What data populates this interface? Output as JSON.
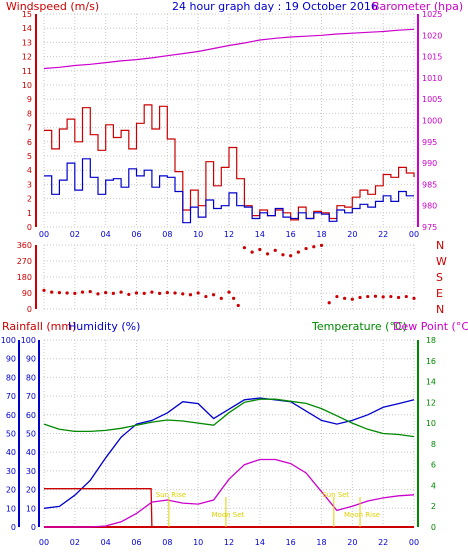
{
  "chart_data": [
    {
      "type": "line",
      "title": "24 hour graph day : 19 October 2016",
      "ylabel_left": "Windspeed (m/s)",
      "ylabel_right": "Barometer (hpa)",
      "xlim": [
        0,
        24
      ],
      "x_ticks": [
        "00",
        "02",
        "04",
        "06",
        "08",
        "10",
        "12",
        "14",
        "16",
        "18",
        "20",
        "22",
        "00"
      ],
      "ylim_left": [
        0,
        15
      ],
      "y_ticks_left": [
        "0",
        "1",
        "2",
        "3",
        "4",
        "5",
        "6",
        "7",
        "8",
        "9",
        "10",
        "11",
        "12",
        "13",
        "14",
        "15"
      ],
      "ylim_right": [
        975,
        1025
      ],
      "y_ticks_right": [
        "975",
        "980",
        "985",
        "990",
        "995",
        "1000",
        "1005",
        "1010",
        "1015",
        "1020",
        "1025"
      ],
      "grid": true,
      "series": [
        {
          "name": "Barometer (hpa)",
          "axis": "right",
          "color": "#cc00cc",
          "x": [
            0,
            1,
            2,
            3,
            4,
            5,
            6,
            7,
            8,
            9,
            10,
            11,
            12,
            13,
            14,
            15,
            16,
            17,
            18,
            19,
            20,
            21,
            22,
            23,
            24
          ],
          "y": [
            1012.2,
            1012.5,
            1012.9,
            1013.2,
            1013.6,
            1014.0,
            1014.3,
            1014.7,
            1015.2,
            1015.7,
            1016.2,
            1016.9,
            1017.6,
            1018.2,
            1018.9,
            1019.3,
            1019.6,
            1019.8,
            1020.0,
            1020.3,
            1020.5,
            1020.7,
            1020.9,
            1021.2,
            1021.4
          ]
        },
        {
          "name": "Windspeed (m/s)",
          "axis": "left",
          "color": "#cc0000",
          "x": [
            0,
            0.5,
            1,
            1.5,
            2,
            2.5,
            3,
            3.5,
            4,
            4.5,
            5,
            5.5,
            6,
            6.5,
            7,
            7.5,
            8,
            8.5,
            9,
            9.5,
            10,
            10.5,
            11,
            11.5,
            12,
            12.5,
            13,
            13.5,
            14,
            14.5,
            15,
            15.5,
            16,
            16.5,
            17,
            17.5,
            18,
            18.5,
            19,
            19.5,
            20,
            20.5,
            21,
            21.5,
            22,
            22.5,
            23,
            23.5,
            24
          ],
          "y": [
            6.8,
            5.5,
            6.9,
            7.6,
            6.0,
            8.4,
            6.5,
            5.4,
            7.2,
            6.3,
            6.8,
            5.5,
            7.3,
            8.6,
            6.9,
            8.5,
            6.2,
            3.9,
            1.2,
            2.6,
            1.5,
            4.6,
            2.9,
            4.2,
            5.6,
            3.4,
            1.5,
            0.8,
            1.2,
            0.8,
            1.2,
            1.0,
            0.5,
            1.4,
            0.6,
            1.1,
            1.0,
            0.6,
            1.5,
            1.4,
            2.1,
            2.6,
            2.3,
            2.9,
            3.7,
            3.5,
            4.2,
            3.8,
            3.5
          ]
        },
        {
          "name": "Windspeed (m/s) average",
          "axis": "left",
          "color": "#0000cc",
          "x": [
            0,
            0.5,
            1,
            1.5,
            2,
            2.5,
            3,
            3.5,
            4,
            4.5,
            5,
            5.5,
            6,
            6.5,
            7,
            7.5,
            8,
            8.5,
            9,
            9.5,
            10,
            10.5,
            11,
            11.5,
            12,
            12.5,
            13,
            13.5,
            14,
            14.5,
            15,
            15.5,
            16,
            16.5,
            17,
            17.5,
            18,
            18.5,
            19,
            19.5,
            20,
            20.5,
            21,
            21.5,
            22,
            22.5,
            23,
            23.5,
            24
          ],
          "y": [
            3.6,
            2.3,
            3.3,
            4.5,
            2.6,
            4.8,
            3.5,
            2.3,
            3.3,
            3.4,
            2.8,
            4.1,
            3.6,
            4.0,
            2.8,
            3.6,
            3.5,
            2.5,
            0.3,
            1.4,
            0.7,
            1.9,
            1.3,
            1.5,
            2.4,
            1.5,
            1.4,
            0.6,
            1.0,
            0.8,
            1.3,
            0.7,
            0.6,
            1.0,
            0.6,
            1.0,
            0.9,
            0.4,
            1.2,
            1.0,
            1.3,
            1.6,
            1.4,
            1.8,
            2.2,
            1.8,
            2.5,
            2.2,
            2.2
          ]
        }
      ]
    },
    {
      "type": "scatter",
      "ylabel_right": [
        "N",
        "W",
        "S",
        "E",
        "N"
      ],
      "xlim": [
        0,
        24
      ],
      "ylim": [
        0,
        360
      ],
      "y_ticks": [
        "360",
        "270",
        "180",
        "90",
        "0"
      ],
      "series": [
        {
          "name": "Wind direction",
          "color": "#cc0000",
          "x": [
            0,
            0.5,
            1,
            1.5,
            2,
            2.5,
            3,
            3.5,
            4,
            4.5,
            5,
            5.5,
            6,
            6.5,
            7,
            7.5,
            8,
            8.5,
            9,
            9.5,
            10,
            10.5,
            11,
            11.5,
            12,
            12.3,
            12.6,
            13,
            13.5,
            14,
            14.5,
            15,
            15.5,
            16,
            16.5,
            17,
            17.5,
            18,
            18.5,
            19,
            19.5,
            20,
            20.5,
            21,
            21.5,
            22,
            22.5,
            23,
            23.5,
            24
          ],
          "y": [
            105,
            95,
            92,
            90,
            88,
            95,
            98,
            85,
            92,
            88,
            95,
            82,
            90,
            88,
            95,
            88,
            92,
            90,
            85,
            80,
            90,
            70,
            80,
            60,
            95,
            60,
            20,
            345,
            320,
            335,
            310,
            330,
            305,
            300,
            320,
            340,
            350,
            358,
            35,
            70,
            60,
            55,
            65,
            70,
            72,
            68,
            70,
            65,
            70,
            60
          ]
        }
      ]
    },
    {
      "type": "line",
      "ylabel_left": "Rainfall (mm)",
      "ylabel_left2": "Humidity (%)",
      "ylabel_right": "Temperature (°C)",
      "ylabel_right2": "Dew Point (°C)",
      "xlim": [
        0,
        24
      ],
      "x_ticks": [
        "00",
        "02",
        "04",
        "06",
        "08",
        "10",
        "12",
        "14",
        "16",
        "18",
        "20",
        "22",
        "00"
      ],
      "ylim_left": [
        0,
        100
      ],
      "y_ticks_left": [
        "0",
        "10",
        "20",
        "30",
        "40",
        "50",
        "60",
        "70",
        "80",
        "90",
        "100"
      ],
      "ylim_right": [
        0,
        18
      ],
      "y_ticks_right": [
        "0",
        "2",
        "4",
        "6",
        "8",
        "10",
        "12",
        "14",
        "16",
        "18"
      ],
      "annotations": [
        {
          "text": "Sun Rise",
          "x": 8.1
        },
        {
          "text": "Moon Set",
          "x": 11.8
        },
        {
          "text": "Sun Set",
          "x": 18.8
        },
        {
          "text": "Moon Rise",
          "x": 20.5
        }
      ],
      "series": [
        {
          "name": "Humidity (%)",
          "axis": "left",
          "color": "#0000cc",
          "x": [
            0,
            1,
            2,
            3,
            4,
            5,
            6,
            7,
            8,
            9,
            10,
            11,
            12,
            13,
            14,
            15,
            16,
            17,
            18,
            19,
            20,
            21,
            22,
            23,
            24
          ],
          "y": [
            10,
            11,
            17,
            25,
            37,
            48,
            55,
            57,
            61,
            67,
            66,
            58,
            63,
            68,
            69,
            68,
            67,
            62,
            57,
            55,
            57,
            60,
            64,
            66,
            68
          ]
        },
        {
          "name": "Rainfall (mm)",
          "axis": "left",
          "color": "#cc0000",
          "x": [
            0,
            1,
            2,
            3,
            4,
            5,
            6,
            6.95,
            7,
            10,
            14,
            18,
            22,
            24
          ],
          "y": [
            20.5,
            20.5,
            20.5,
            20.5,
            20.5,
            20.5,
            20.5,
            20.5,
            0,
            0,
            0,
            0,
            0,
            0
          ]
        },
        {
          "name": "Temperature (°C)",
          "axis": "right",
          "color": "#008800",
          "x": [
            0,
            1,
            2,
            3,
            4,
            5,
            6,
            7,
            8,
            9,
            10,
            11,
            12,
            13,
            14,
            15,
            16,
            17,
            18,
            19,
            20,
            21,
            22,
            23,
            24
          ],
          "y": [
            9.9,
            9.4,
            9.2,
            9.2,
            9.3,
            9.5,
            9.8,
            10.1,
            10.3,
            10.2,
            10.0,
            9.8,
            11.0,
            12.0,
            12.3,
            12.3,
            12.1,
            11.9,
            11.4,
            10.7,
            10.0,
            9.4,
            9.0,
            8.9,
            8.7
          ]
        },
        {
          "name": "Dew Point (°C)",
          "axis": "right",
          "color": "#cc00cc",
          "x": [
            0,
            1,
            2,
            3,
            4,
            5,
            6,
            7,
            8,
            9,
            10,
            11,
            12,
            13,
            14,
            15,
            16,
            17,
            18,
            19,
            20,
            21,
            22,
            23,
            24
          ],
          "y": [
            0,
            0,
            0,
            0,
            0.1,
            0.5,
            1.3,
            2.4,
            2.6,
            2.3,
            2.2,
            2.6,
            4.6,
            6.0,
            6.5,
            6.5,
            6.1,
            5.2,
            3.4,
            1.6,
            2.0,
            2.5,
            2.8,
            3.0,
            3.1
          ]
        }
      ]
    }
  ]
}
